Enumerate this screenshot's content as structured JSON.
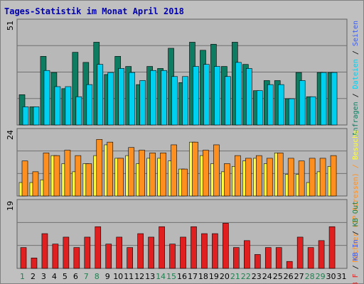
{
  "title": "Tages-Statistik im Monat April 2018",
  "colors": {
    "frame": "#c0c0c0",
    "panel": "#b8b8b8",
    "grid": "#707070",
    "anfragen": "#0e7c60",
    "dateien": "#00d0f0",
    "seiten": "#3a5cf0",
    "rechner": "#ff9020",
    "besuche": "#ffff40",
    "kb": "#e02020",
    "title": "#0000b0",
    "weekday": "#000000",
    "weekend": "#208050"
  },
  "chart_data": [
    {
      "type": "bar",
      "ymax": 51,
      "ymax_label": "51",
      "ylabel_parts": [
        {
          "text": "Anfragen",
          "color": "#0e7c60"
        },
        {
          "text": " / ",
          "color": "#000000"
        },
        {
          "text": "Dateien",
          "color": "#00d0f0"
        },
        {
          "text": " / ",
          "color": "#000000"
        },
        {
          "text": "Seiten",
          "color": "#3a5cf0"
        }
      ],
      "series": [
        {
          "name": "Anfragen",
          "color": "#0e7c60",
          "values": [
            15,
            9,
            34,
            26,
            18,
            36,
            31,
            41,
            25,
            34,
            29,
            20,
            29,
            28,
            38,
            21,
            41,
            37,
            40,
            29,
            41,
            30,
            17,
            22,
            22,
            13,
            26,
            14,
            26,
            26
          ]
        },
        {
          "name": "Dateien",
          "color": "#00d0f0",
          "values": [
            9,
            9,
            27,
            19,
            19,
            14,
            20,
            30,
            26,
            28,
            26,
            22,
            27,
            27,
            24,
            24,
            29,
            30,
            29,
            24,
            31,
            28,
            17,
            20,
            20,
            13,
            22,
            14,
            26,
            26
          ]
        },
        {
          "name": "Seiten",
          "color": "#3a5cf0",
          "values": [
            0,
            0,
            0,
            0,
            0,
            0,
            0,
            0,
            0,
            0,
            0,
            0,
            0,
            0,
            0,
            0,
            0,
            0,
            0,
            0,
            0,
            0,
            0,
            0,
            0,
            0,
            0,
            0,
            0,
            0
          ]
        }
      ]
    },
    {
      "type": "bar",
      "ymax": 24,
      "ymax_label": "24",
      "ylabel_parts": [
        {
          "text": "Rechner",
          "color": "#ff9020"
        },
        {
          "text": " (IP-Adressen) / ",
          "color": "#ff9020"
        },
        {
          "text": "Besuche",
          "color": "#ffff40"
        }
      ],
      "series": [
        {
          "name": "Rechner",
          "color": "#ff9020",
          "values": [
            13,
            9,
            16,
            15,
            17,
            15,
            12,
            21,
            20,
            14,
            18,
            17,
            16,
            16,
            19,
            10,
            20,
            17,
            19,
            12,
            15,
            14,
            15,
            14,
            16,
            14,
            13,
            14,
            14,
            15
          ]
        },
        {
          "name": "Besuche",
          "color": "#ffff40",
          "values": [
            5,
            5,
            6,
            15,
            12,
            9,
            12,
            15,
            19,
            14,
            15,
            12,
            14,
            14,
            13,
            10,
            20,
            15,
            12,
            9,
            11,
            13,
            14,
            12,
            16,
            8,
            8,
            5,
            9,
            11
          ]
        }
      ]
    },
    {
      "type": "bar",
      "ymax": 19,
      "ymax_label": "19",
      "ylabel_parts": [
        {
          "text": "KB F",
          "color": "#e02020"
        },
        {
          "text": " / ",
          "color": "#000000"
        },
        {
          "text": "KB In",
          "color": "#3a5cf0"
        },
        {
          "text": " / ",
          "color": "#000000"
        },
        {
          "text": "KB Out",
          "color": "#208050"
        }
      ],
      "series": [
        {
          "name": "KB F",
          "color": "#e02020",
          "values": [
            6,
            3,
            10,
            7,
            9,
            6,
            9,
            12,
            7,
            9,
            6,
            10,
            9,
            12,
            7,
            9,
            12,
            10,
            10,
            13,
            6,
            8,
            4,
            6,
            6,
            2,
            9,
            6,
            8,
            12
          ]
        }
      ]
    }
  ],
  "x_days": [
    {
      "label": "1",
      "weekend": true
    },
    {
      "label": "2",
      "weekend": false
    },
    {
      "label": "3",
      "weekend": false
    },
    {
      "label": "4",
      "weekend": false
    },
    {
      "label": "5",
      "weekend": false
    },
    {
      "label": "6",
      "weekend": false
    },
    {
      "label": "7",
      "weekend": true
    },
    {
      "label": "8",
      "weekend": true
    },
    {
      "label": "9",
      "weekend": false
    },
    {
      "label": "10",
      "weekend": false
    },
    {
      "label": "11",
      "weekend": false
    },
    {
      "label": "12",
      "weekend": false
    },
    {
      "label": "13",
      "weekend": false
    },
    {
      "label": "14",
      "weekend": true
    },
    {
      "label": "15",
      "weekend": true
    },
    {
      "label": "16",
      "weekend": false
    },
    {
      "label": "17",
      "weekend": false
    },
    {
      "label": "18",
      "weekend": false
    },
    {
      "label": "19",
      "weekend": false
    },
    {
      "label": "20",
      "weekend": false
    },
    {
      "label": "21",
      "weekend": true
    },
    {
      "label": "22",
      "weekend": true
    },
    {
      "label": "23",
      "weekend": false
    },
    {
      "label": "24",
      "weekend": false
    },
    {
      "label": "25",
      "weekend": false
    },
    {
      "label": "26",
      "weekend": false
    },
    {
      "label": "27",
      "weekend": false
    },
    {
      "label": "28",
      "weekend": true
    },
    {
      "label": "29",
      "weekend": true
    },
    {
      "label": "30",
      "weekend": false
    },
    {
      "label": "31",
      "weekend": false
    }
  ]
}
